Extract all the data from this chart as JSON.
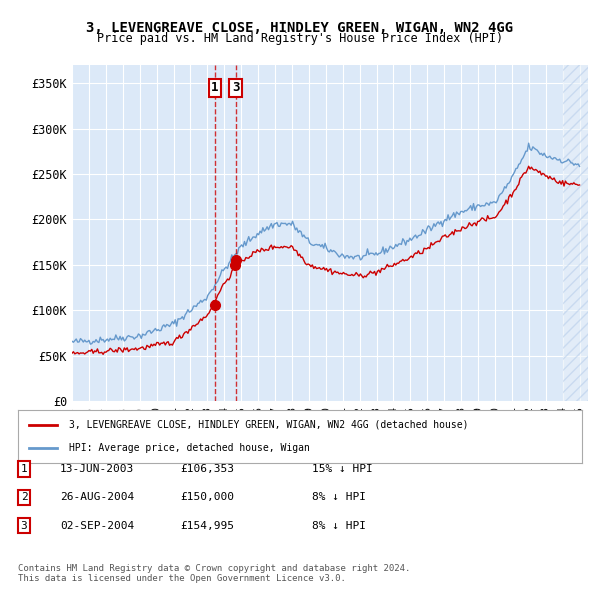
{
  "title": "3, LEVENGREAVE CLOSE, HINDLEY GREEN, WIGAN, WN2 4GG",
  "subtitle": "Price paid vs. HM Land Registry's House Price Index (HPI)",
  "ylabel": "",
  "xlim_start": 1995.0,
  "xlim_end": 2025.5,
  "ylim": [
    0,
    370000
  ],
  "yticks": [
    0,
    50000,
    100000,
    150000,
    200000,
    250000,
    300000,
    350000
  ],
  "ytick_labels": [
    "£0",
    "£50K",
    "£100K",
    "£150K",
    "£200K",
    "£250K",
    "£300K",
    "£350K"
  ],
  "background_color": "#dce9f8",
  "plot_bg_color": "#dce9f8",
  "grid_color": "#ffffff",
  "sale_color": "#cc0000",
  "hpi_color": "#6699cc",
  "transaction1": {
    "date": 2003.45,
    "price": 106353,
    "label": "1"
  },
  "transaction2": {
    "date": 2004.65,
    "price": 150000,
    "label": "2"
  },
  "transaction3": {
    "date": 2004.67,
    "price": 154995,
    "label": "3"
  },
  "legend_sale": "3, LEVENGREAVE CLOSE, HINDLEY GREEN, WIGAN, WN2 4GG (detached house)",
  "legend_hpi": "HPI: Average price, detached house, Wigan",
  "table_rows": [
    {
      "num": "1",
      "date": "13-JUN-2003",
      "price": "£106,353",
      "pct": "15% ↓ HPI"
    },
    {
      "num": "2",
      "date": "26-AUG-2004",
      "price": "£150,000",
      "pct": "8% ↓ HPI"
    },
    {
      "num": "3",
      "date": "02-SEP-2004",
      "price": "£154,995",
      "pct": "8% ↓ HPI"
    }
  ],
  "footnote": "Contains HM Land Registry data © Crown copyright and database right 2024.\nThis data is licensed under the Open Government Licence v3.0.",
  "hatch_color": "#b0c8e8"
}
